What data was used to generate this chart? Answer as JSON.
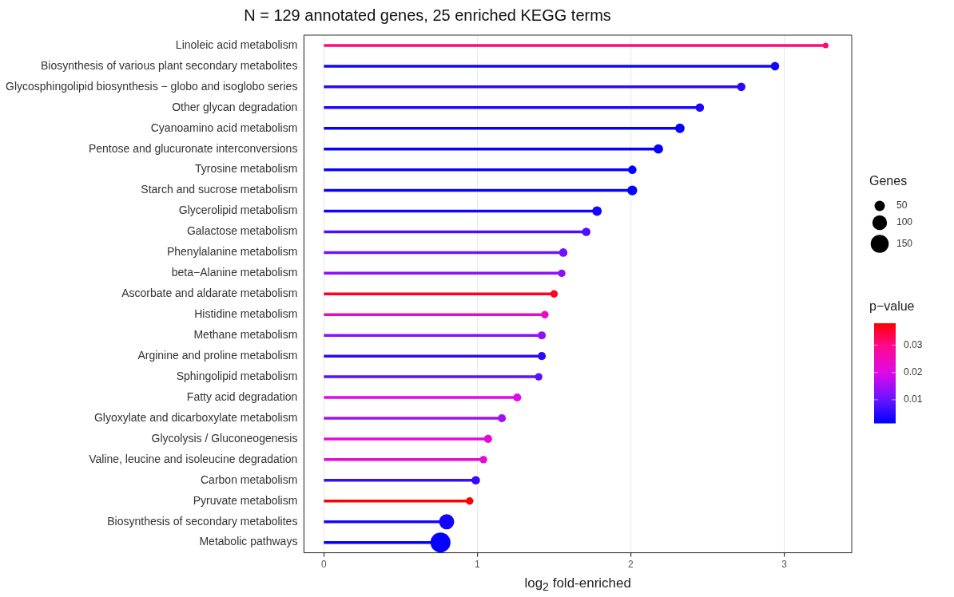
{
  "chart_data": {
    "type": "lollipop",
    "orientation": "horizontal",
    "title": "N = 129 annotated genes, 25 enriched KEGG terms",
    "xlabel": "log$_{2}$ fold-enriched",
    "categories": [
      "Linoleic acid metabolism",
      "Biosynthesis of various plant secondary metabolites",
      "Glycosphingolipid biosynthesis − globo and isoglobo series",
      "Other glycan degradation",
      "Cyanoamino acid metabolism",
      "Pentose and glucuronate interconversions",
      "Tyrosine metabolism",
      "Starch and sucrose metabolism",
      "Glycerolipid metabolism",
      "Galactose metabolism",
      "Phenylalanine metabolism",
      "beta−Alanine metabolism",
      "Ascorbate and aldarate metabolism",
      "Histidine metabolism",
      "Methane metabolism",
      "Arginine and proline metabolism",
      "Sphingolipid metabolism",
      "Fatty acid degradation",
      "Glyoxylate and dicarboxylate metabolism",
      "Glycolysis / Gluconeogenesis",
      "Valine, leucine and isoleucine degradation",
      "Carbon metabolism",
      "Pyruvate metabolism",
      "Biosynthesis of secondary metabolites",
      "Metabolic pathways"
    ],
    "values": [
      3.27,
      2.94,
      2.72,
      2.45,
      2.32,
      2.18,
      2.01,
      2.01,
      1.78,
      1.71,
      1.56,
      1.55,
      1.5,
      1.44,
      1.42,
      1.42,
      1.4,
      1.26,
      1.16,
      1.07,
      1.04,
      0.99,
      0.95,
      0.8,
      0.76
    ],
    "sizes": [
      15,
      33,
      33,
      33,
      41,
      41,
      33,
      45,
      41,
      33,
      33,
      26,
      26,
      26,
      30,
      30,
      26,
      30,
      30,
      30,
      26,
      33,
      26,
      106,
      184
    ],
    "size_legend": [
      50,
      100,
      150
    ],
    "legend_title": "Genes",
    "cvalues": [
      0.031,
      0.003,
      0.005,
      0.004,
      0.002,
      0.002,
      0.002,
      0.002,
      0.003,
      0.008,
      0.011,
      0.013,
      0.036,
      0.024,
      0.013,
      0.005,
      0.009,
      0.02,
      0.015,
      0.022,
      0.022,
      0.006,
      0.038,
      0.003,
      0.002
    ],
    "clabel": "p−value",
    "clim": [
      0.0015,
      0.038
    ],
    "cticks": [
      0.01,
      0.02,
      0.03
    ],
    "xlim": [
      -0.13,
      3.44
    ],
    "xticks": [
      0,
      1,
      2,
      3
    ],
    "grid": "x"
  }
}
